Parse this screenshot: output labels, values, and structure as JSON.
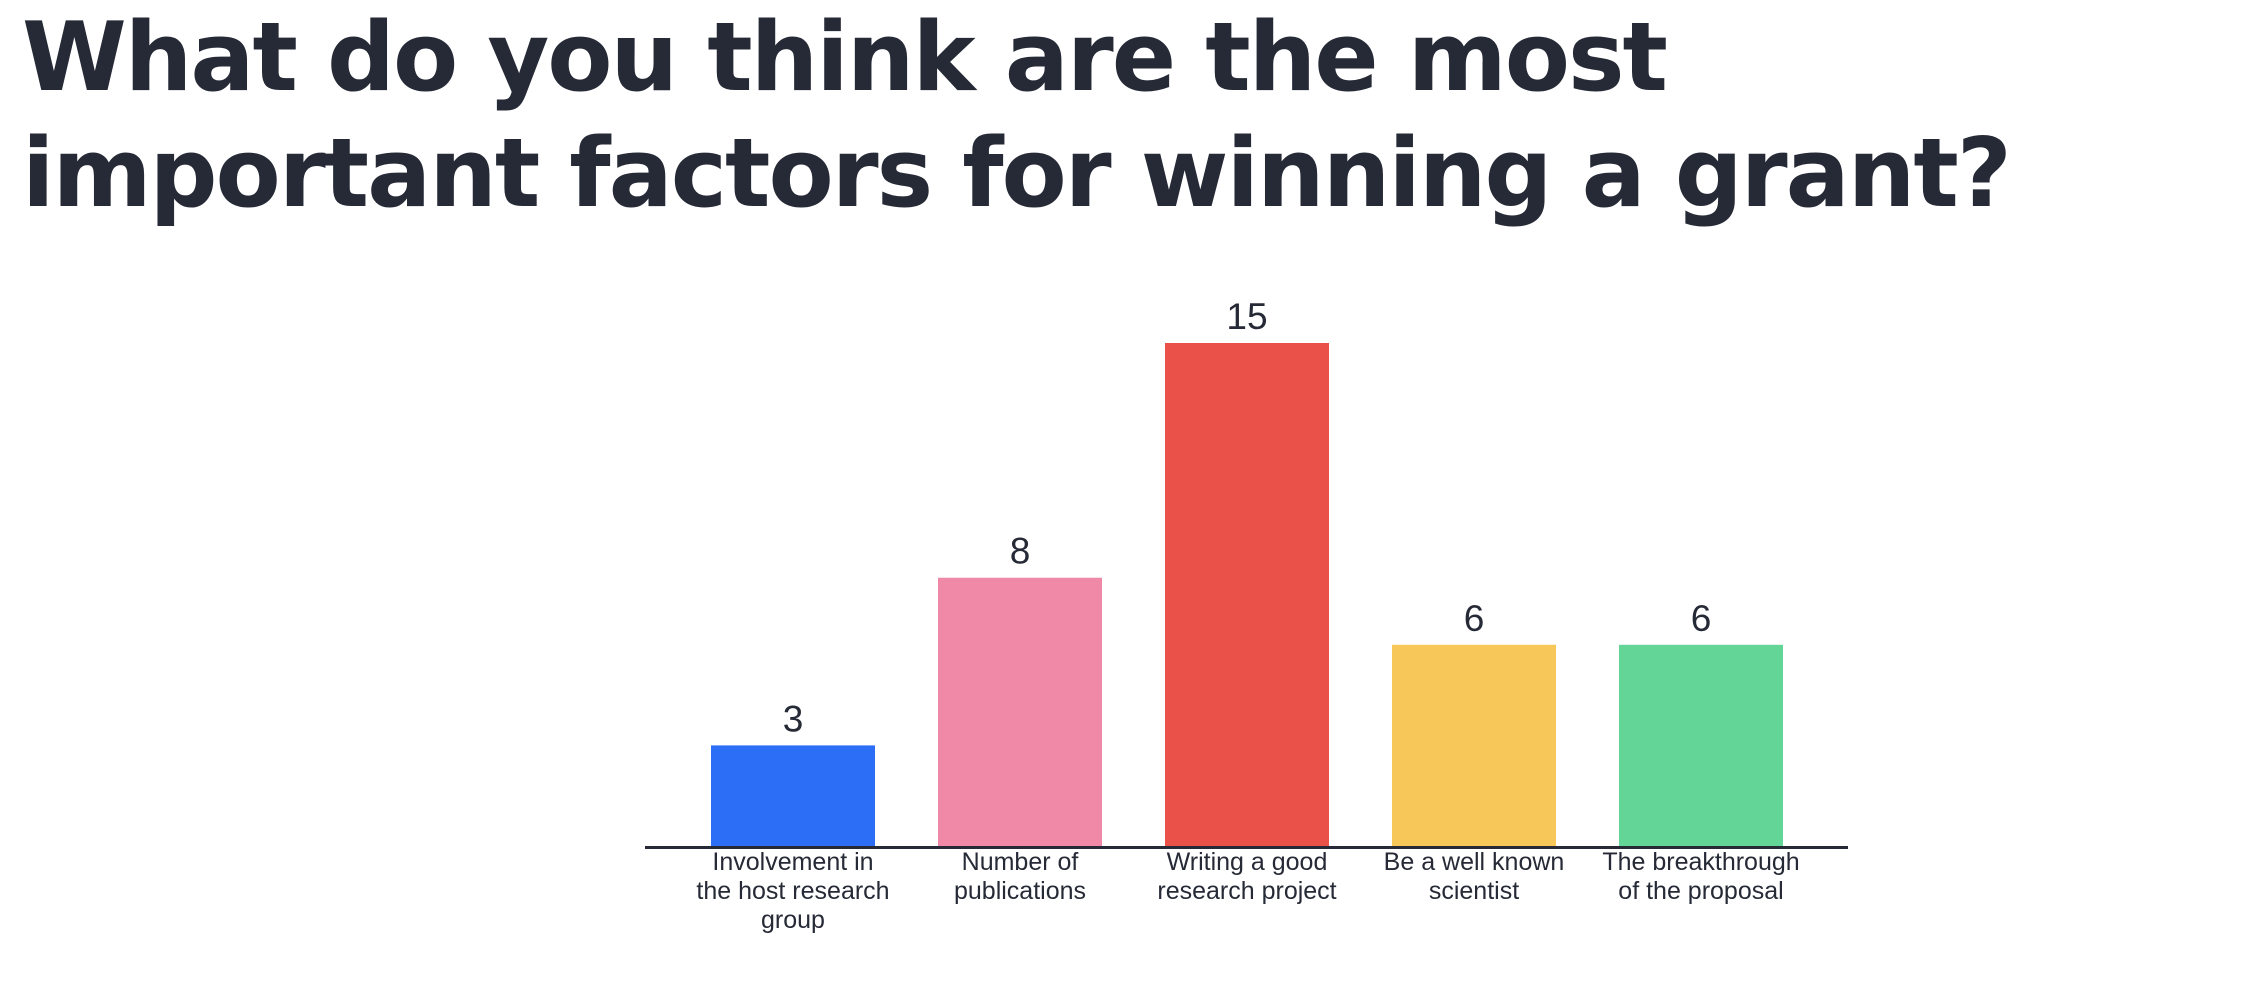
{
  "title": "What do you think are the most important factors for winning a grant?",
  "chart_data": {
    "type": "bar",
    "title": "What do you think are the most important factors for winning a grant?",
    "categories": [
      "Involvement in the host research group",
      "Number of publications",
      "Writing a good research project",
      "Be a well known scientist",
      "The breakthrough of the proposal"
    ],
    "values": [
      3,
      8,
      15,
      6,
      6
    ],
    "colors": [
      "#2c6ff6",
      "#f088a8",
      "#ea5148",
      "#f7c75a",
      "#62d597"
    ],
    "xlabel": "",
    "ylabel": "",
    "ylim": [
      0,
      15
    ],
    "grid": false,
    "legend": "none"
  }
}
